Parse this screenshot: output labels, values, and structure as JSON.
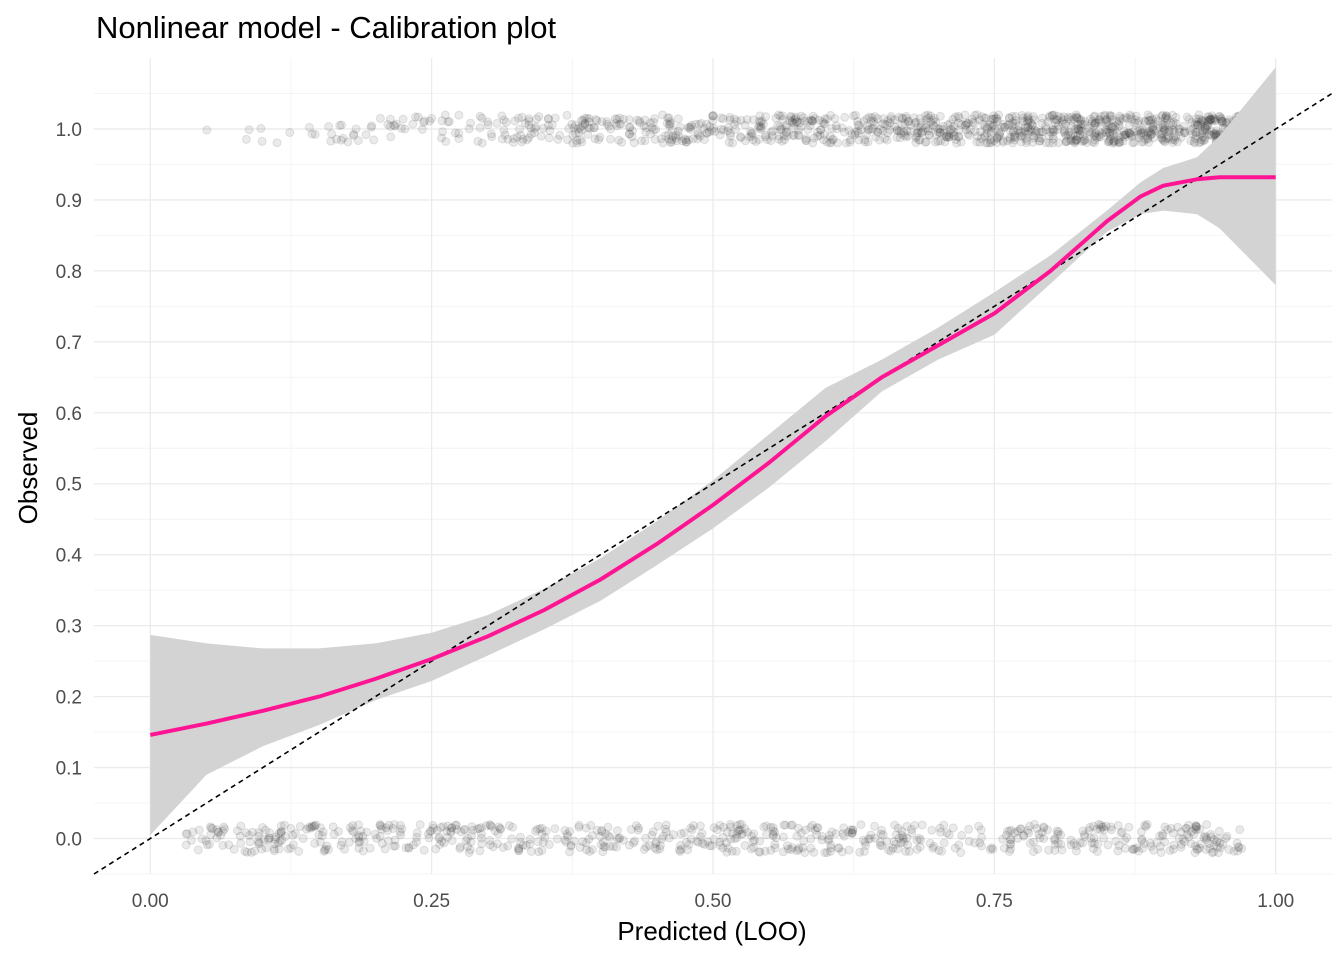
{
  "chart_data": {
    "type": "scatter",
    "title": "Nonlinear model - Calibration plot",
    "xlabel": "Predicted (LOO)",
    "ylabel": "Observed",
    "xlim": [
      -0.05,
      1.05
    ],
    "ylim": [
      -0.05,
      1.1
    ],
    "x_ticks": [
      0.0,
      0.25,
      0.5,
      0.75,
      1.0
    ],
    "x_tick_labels": [
      "0.00",
      "0.25",
      "0.50",
      "0.75",
      "1.00"
    ],
    "y_ticks": [
      0.0,
      0.1,
      0.2,
      0.3,
      0.4,
      0.5,
      0.6,
      0.7,
      0.8,
      0.9,
      1.0
    ],
    "y_tick_labels": [
      "0.0",
      "0.1",
      "0.2",
      "0.3",
      "0.4",
      "0.5",
      "0.6",
      "0.7",
      "0.8",
      "0.9",
      "1.0"
    ],
    "grid": true,
    "legend": "none",
    "colors": {
      "smooth_line": "#ff1493",
      "ribbon": "#d3d3d3",
      "points": "#333333",
      "reference_line": "#000000",
      "grid_major": "#ebebeb",
      "grid_minor": "#f4f4f4"
    },
    "series": [
      {
        "type": "smooth",
        "x": [
          0.0,
          0.05,
          0.1,
          0.15,
          0.2,
          0.25,
          0.3,
          0.35,
          0.4,
          0.45,
          0.5,
          0.55,
          0.6,
          0.65,
          0.7,
          0.75,
          0.8,
          0.85,
          0.88,
          0.9,
          0.93,
          0.95,
          1.0
        ],
        "y": [
          0.146,
          0.162,
          0.18,
          0.2,
          0.225,
          0.253,
          0.285,
          0.322,
          0.365,
          0.415,
          0.47,
          0.53,
          0.595,
          0.65,
          0.695,
          0.74,
          0.8,
          0.87,
          0.905,
          0.92,
          0.929,
          0.932,
          0.932
        ],
        "lower": [
          0.005,
          0.09,
          0.13,
          0.16,
          0.195,
          0.222,
          0.258,
          0.295,
          0.335,
          0.385,
          0.437,
          0.495,
          0.56,
          0.63,
          0.675,
          0.71,
          0.782,
          0.855,
          0.88,
          0.885,
          0.88,
          0.86,
          0.78
        ],
        "upper": [
          0.287,
          0.275,
          0.268,
          0.268,
          0.275,
          0.29,
          0.315,
          0.352,
          0.395,
          0.447,
          0.505,
          0.57,
          0.635,
          0.675,
          0.72,
          0.77,
          0.822,
          0.885,
          0.925,
          0.945,
          0.96,
          0.99,
          1.087
        ]
      },
      {
        "type": "reference",
        "x": [
          -0.05,
          1.05
        ],
        "y": [
          -0.05,
          1.05
        ]
      },
      {
        "type": "points",
        "y": 1.0,
        "x_range": [
          0.03,
          0.98
        ],
        "count": 1100,
        "alpha": 0.1,
        "concentration": "denser toward higher predicted values"
      },
      {
        "type": "points",
        "y": 0.0,
        "x_range": [
          0.03,
          0.97
        ],
        "count": 700,
        "alpha": 0.1,
        "concentration": "spread across predicted values"
      }
    ]
  }
}
